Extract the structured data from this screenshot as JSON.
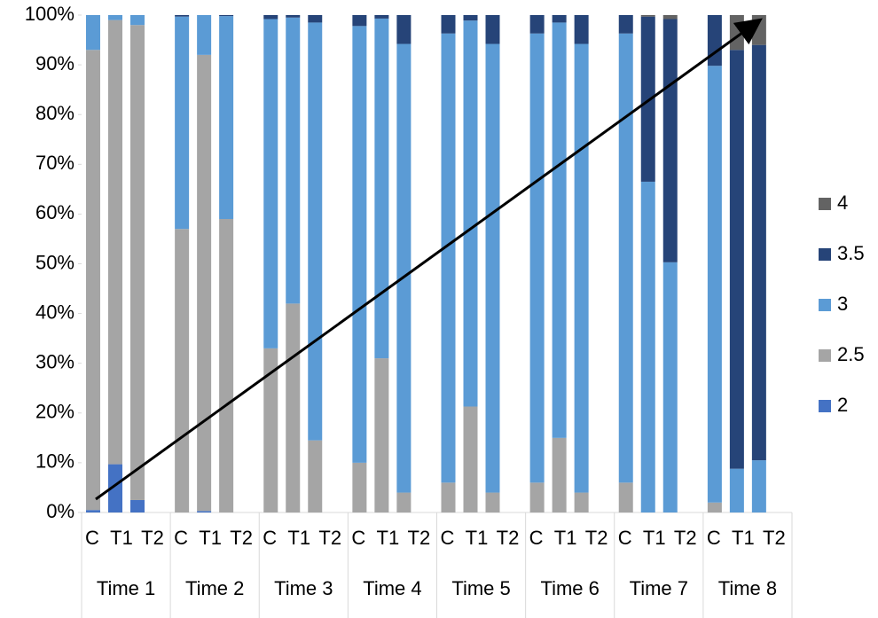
{
  "chart_data": {
    "type": "stacked_bar_100",
    "groups": [
      {
        "label": "Time 1",
        "categories": [
          "C",
          "T1",
          "T2"
        ]
      },
      {
        "label": "Time 2",
        "categories": [
          "C",
          "T1",
          "T2"
        ]
      },
      {
        "label": "Time 3",
        "categories": [
          "C",
          "T1",
          "T2"
        ]
      },
      {
        "label": "Time 4",
        "categories": [
          "C",
          "T1",
          "T2"
        ]
      },
      {
        "label": "Time 5",
        "categories": [
          "C",
          "T1",
          "T2"
        ]
      },
      {
        "label": "Time 6",
        "categories": [
          "C",
          "T1",
          "T2"
        ]
      },
      {
        "label": "Time 7",
        "categories": [
          "C",
          "T1",
          "T2"
        ]
      },
      {
        "label": "Time 8",
        "categories": [
          "C",
          "T1",
          "T2"
        ]
      }
    ],
    "series": [
      {
        "name": "2",
        "color": "#4472c4",
        "values": [
          0.5,
          9.7,
          2.5,
          0,
          0.3,
          0,
          0,
          0,
          0,
          0,
          0,
          0,
          0,
          0,
          0,
          0,
          0,
          0,
          0,
          0,
          0,
          0,
          0,
          0
        ]
      },
      {
        "name": "2.5",
        "color": "#a5a5a5",
        "values": [
          92.5,
          89.3,
          95.5,
          57,
          91.7,
          59,
          33,
          42,
          14.5,
          10,
          31,
          4,
          6,
          21.3,
          4,
          6,
          15,
          4,
          6,
          0,
          0,
          2,
          0,
          0
        ]
      },
      {
        "name": "3",
        "color": "#5b9bd5",
        "values": [
          7,
          1,
          2,
          42.7,
          8,
          40.8,
          66.2,
          57.5,
          84,
          87.8,
          68.3,
          90.2,
          90.3,
          77.6,
          90.2,
          90.3,
          83.5,
          90.2,
          90.3,
          66.5,
          50.3,
          87.8,
          8.8,
          10.5
        ]
      },
      {
        "name": "3.5",
        "color": "#264478",
        "values": [
          0,
          0,
          0,
          0.3,
          0,
          0.2,
          0.8,
          0.5,
          1.5,
          2.2,
          0.7,
          5.8,
          3.7,
          1.1,
          5.8,
          3.7,
          1.5,
          5.8,
          3.7,
          33.2,
          48.9,
          10.2,
          84.2,
          83.5
        ]
      },
      {
        "name": "4",
        "color": "#636363",
        "values": [
          0,
          0,
          0,
          0,
          0,
          0,
          0,
          0,
          0,
          0,
          0,
          0,
          0,
          0,
          0,
          0,
          0,
          0,
          0,
          0.3,
          0.8,
          0,
          7,
          6
        ]
      }
    ],
    "ylim": [
      0,
      100
    ],
    "yticks": [
      {
        "value": 0,
        "label": "0%"
      },
      {
        "value": 10,
        "label": "10%"
      },
      {
        "value": 20,
        "label": "20%"
      },
      {
        "value": 30,
        "label": "30%"
      },
      {
        "value": 40,
        "label": "40%"
      },
      {
        "value": 50,
        "label": "50%"
      },
      {
        "value": 60,
        "label": "60%"
      },
      {
        "value": 70,
        "label": "70%"
      },
      {
        "value": 80,
        "label": "80%"
      },
      {
        "value": 90,
        "label": "90%"
      },
      {
        "value": 100,
        "label": "100%"
      }
    ],
    "legend": "right"
  }
}
